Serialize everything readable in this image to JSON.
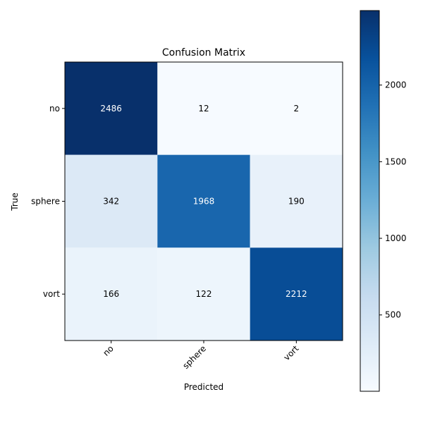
{
  "chart_data": {
    "type": "heatmap",
    "title": "Confusion Matrix",
    "xlabel": "Predicted",
    "ylabel": "True",
    "x_categories": [
      "no",
      "sphere",
      "vort"
    ],
    "y_categories": [
      "no",
      "sphere",
      "vort"
    ],
    "values": [
      [
        2486,
        12,
        2
      ],
      [
        342,
        1968,
        190
      ],
      [
        166,
        122,
        2212
      ]
    ],
    "colormap": "Blues",
    "color_range": [
      2,
      2486
    ],
    "colorbar_ticks": [
      500,
      1000,
      1500,
      2000
    ],
    "grid": false,
    "colors": {
      "low": "#f7fbff",
      "high": "#08306b",
      "text_on_dark": "#ffffff",
      "text_on_light": "#000000"
    }
  }
}
